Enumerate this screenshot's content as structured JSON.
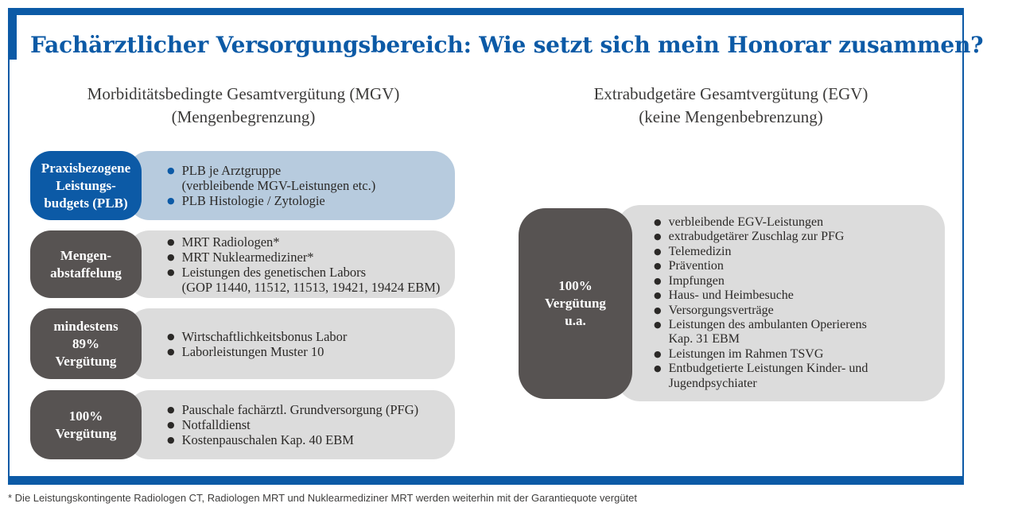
{
  "title": "Fachärztlicher Versorgungsbereich: Wie setzt sich mein Honorar zusammen?",
  "colors": {
    "accent_blue": "#0c5aa6",
    "light_blue": "#b7cbde",
    "dark_gray": "#575352",
    "light_gray": "#dcdcdc"
  },
  "icons": {
    "bullet": "●"
  },
  "left": {
    "header": {
      "line1": "Morbiditätsbedingte Gesamtvergütung (MGV)",
      "line2": "(Mengenbegrenzung)"
    },
    "rows": [
      {
        "label": "Praxisbezogene\nLeistungs-\nbudgets (PLB)",
        "items": [
          "PLB je Arztgruppe\n(verbleibende MGV-Leistungen etc.)",
          "PLB Histologie / Zytologie"
        ]
      },
      {
        "label": "Mengen-\nabstaffelung",
        "items": [
          "MRT Radiologen*",
          "MRT Nuklearmediziner*",
          "Leistungen des genetischen Labors\n(GOP 11440, 11512, 11513, 19421, 19424 EBM)"
        ]
      },
      {
        "label": "mindestens\n89%\nVergütung",
        "items": [
          "Wirtschaftlichkeitsbonus Labor",
          "Laborleistungen Muster 10"
        ]
      },
      {
        "label": "100%\nVergütung",
        "items": [
          "Pauschale fachärztl. Grundversorgung (PFG)",
          "Notfalldienst",
          "Kostenpauschalen Kap. 40 EBM"
        ]
      }
    ]
  },
  "right": {
    "header": {
      "line1": "Extrabudgetäre Gesamtvergütung (EGV)",
      "line2": "(keine Mengenbebrenzung)"
    },
    "label": "100%\nVergütung\nu.a.",
    "items": [
      "verbleibende EGV-Leistungen",
      "extrabudgetärer Zuschlag zur PFG",
      "Telemedizin",
      "Prävention",
      "Impfungen",
      "Haus- und Heimbesuche",
      "Versorgungsverträge",
      "Leistungen des ambulanten Operierens\nKap. 31 EBM",
      "Leistungen im Rahmen TSVG",
      "Entbudgetierte Leistungen Kinder- und\nJugendpsychiater"
    ]
  },
  "footnote": "* Die Leistungskontingente Radiologen CT, Radiologen MRT und Nuklearmediziner MRT werden weiterhin mit der Garantiequote vergütet"
}
